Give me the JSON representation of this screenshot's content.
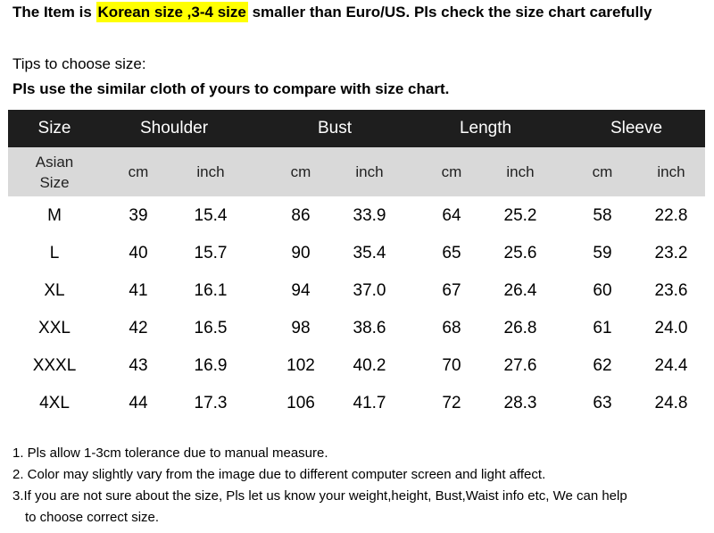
{
  "header": {
    "prefix": "The Item is ",
    "highlight": "Korean size ,3-4 size",
    "suffix": " smaller than Euro/US. Pls check the size chart carefully"
  },
  "tips": {
    "label": "Tips to choose size:",
    "instruction": "Pls use the similar cloth of yours to compare with size chart."
  },
  "table": {
    "columns": [
      "Size",
      "Shoulder",
      "Bust",
      "Length",
      "Sleeve"
    ],
    "subheader": [
      "Asian Size",
      "cm",
      "inch",
      "cm",
      "inch",
      "cm",
      "inch",
      "cm",
      "inch"
    ],
    "rows": [
      [
        "M",
        "39",
        "15.4",
        "86",
        "33.9",
        "64",
        "25.2",
        "58",
        "22.8"
      ],
      [
        "L",
        "40",
        "15.7",
        "90",
        "35.4",
        "65",
        "25.6",
        "59",
        "23.2"
      ],
      [
        "XL",
        "41",
        "16.1",
        "94",
        "37.0",
        "67",
        "26.4",
        "60",
        "23.6"
      ],
      [
        "XXL",
        "42",
        "16.5",
        "98",
        "38.6",
        "68",
        "26.8",
        "61",
        "24.0"
      ],
      [
        "XXXL",
        "43",
        "16.9",
        "102",
        "40.2",
        "70",
        "27.6",
        "62",
        "24.4"
      ],
      [
        "4XL",
        "44",
        "17.3",
        "106",
        "41.7",
        "72",
        "28.3",
        "63",
        "24.8"
      ]
    ]
  },
  "notes": [
    "1. Pls allow 1-3cm tolerance due to manual measure.",
    "2. Color may slightly vary from the image due to different computer screen and light affect.",
    "3.If you are not sure about the size, Pls let us know your weight,height, Bust,Waist info etc, We can help",
    "to choose correct size."
  ]
}
